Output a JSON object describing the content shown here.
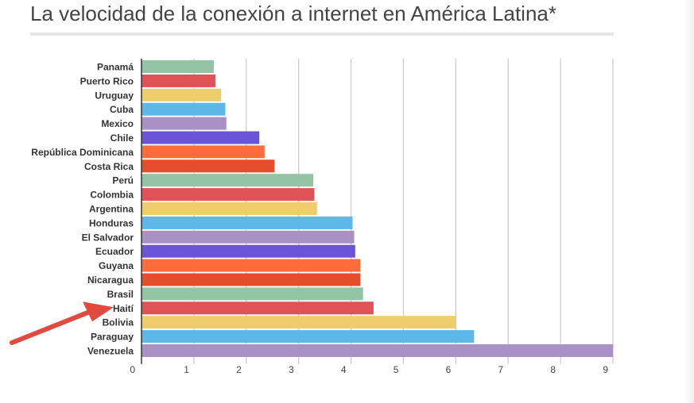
{
  "page": {
    "title": "La velocidad de la conexión a internet en América Latina*"
  },
  "chart_data": {
    "type": "bar",
    "orientation": "horizontal",
    "title": "La velocidad de la conexión a internet en América Latina*",
    "xlabel": "",
    "ylabel": "",
    "xlim": [
      0,
      9
    ],
    "x_ticks": [
      "0",
      "1",
      "2",
      "3",
      "4",
      "5",
      "6",
      "7",
      "8",
      "9"
    ],
    "grid": true,
    "categories": [
      "Panamá",
      "Puerto Rico",
      "Uruguay",
      "Cuba",
      "Mexico",
      "Chile",
      "República Dominicana",
      "Costa Rica",
      "Perú",
      "Colombia",
      "Argentina",
      "Honduras",
      "El Salvador",
      "Ecuador",
      "Guyana",
      "Nicaragua",
      "Brasil",
      "Haití",
      "Bolivia",
      "Paraguay",
      "Venezuela"
    ],
    "values": [
      1.38,
      1.41,
      1.52,
      1.6,
      1.62,
      2.25,
      2.35,
      2.54,
      3.28,
      3.3,
      3.35,
      4.03,
      4.06,
      4.08,
      4.18,
      4.18,
      4.23,
      4.43,
      6.0,
      6.35,
      9.0
    ],
    "colors": [
      "#93c5a4",
      "#df5356",
      "#f0cd6b",
      "#5db8e8",
      "#a991c6",
      "#6c54d9",
      "#ff6b3b",
      "#e64d2b",
      "#93c5a4",
      "#df5356",
      "#f0cd6b",
      "#5db8e8",
      "#a991c6",
      "#6c54d9",
      "#ff6b3b",
      "#e64d2b",
      "#93c5a4",
      "#df5356",
      "#f0cd6b",
      "#5db8e8",
      "#a991c6"
    ],
    "annotations": [
      {
        "type": "arrow",
        "target": "Haití",
        "color": "#e04a3f"
      }
    ]
  }
}
